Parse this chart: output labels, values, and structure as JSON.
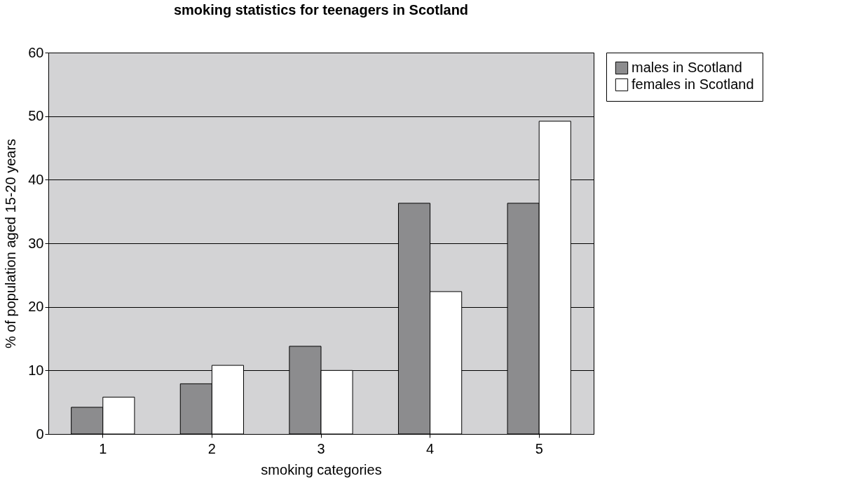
{
  "chart_data": {
    "type": "bar",
    "title": "smoking statistics for teenagers in Scotland",
    "xlabel": "smoking categories",
    "ylabel": "% of population aged 15-20 years",
    "categories": [
      "1",
      "2",
      "3",
      "4",
      "5"
    ],
    "series": [
      {
        "name": "males in Scotland",
        "color": "#8c8c8e",
        "values": [
          4.2,
          7.9,
          13.8,
          36.3,
          36.3
        ]
      },
      {
        "name": "females in Scotland",
        "color": "#ffffff",
        "values": [
          5.8,
          10.8,
          10.0,
          22.4,
          49.2
        ]
      }
    ],
    "ylim": [
      0,
      60
    ],
    "yticks": [
      0,
      10,
      20,
      30,
      40,
      50,
      60
    ],
    "grid": "y",
    "legend": "right"
  }
}
